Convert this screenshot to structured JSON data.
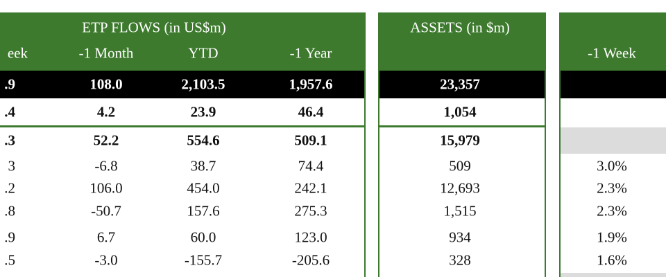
{
  "flows": {
    "title": "ETP FLOWS (in US$m)",
    "columns": [
      "eek",
      "-1 Month",
      "YTD",
      "-1 Year"
    ],
    "rows": [
      [
        ".9",
        "108.0",
        "2,103.5",
        "1,957.6"
      ],
      [
        ".4",
        "4.2",
        "23.9",
        "46.4"
      ],
      [
        ".3",
        "52.2",
        "554.6",
        "509.1"
      ],
      [
        "3",
        "-6.8",
        "38.7",
        "74.4"
      ],
      [
        ".2",
        "106.0",
        "454.0",
        "242.1"
      ],
      [
        ".8",
        "-50.7",
        "157.6",
        "275.3"
      ],
      [
        ".9",
        "6.7",
        "60.0",
        "123.0"
      ],
      [
        ".5",
        "-3.0",
        "-155.7",
        "-205.6"
      ]
    ]
  },
  "assets": {
    "title": "ASSETS (in $m)",
    "rows": [
      "23,357",
      "1,054",
      "15,979",
      "509",
      "12,693",
      "1,515",
      "934",
      "328"
    ]
  },
  "performance": {
    "column": "-1 Week",
    "rows": [
      "3.0%",
      "2.3%",
      "2.3%",
      "1.9%",
      "1.6%"
    ]
  }
}
